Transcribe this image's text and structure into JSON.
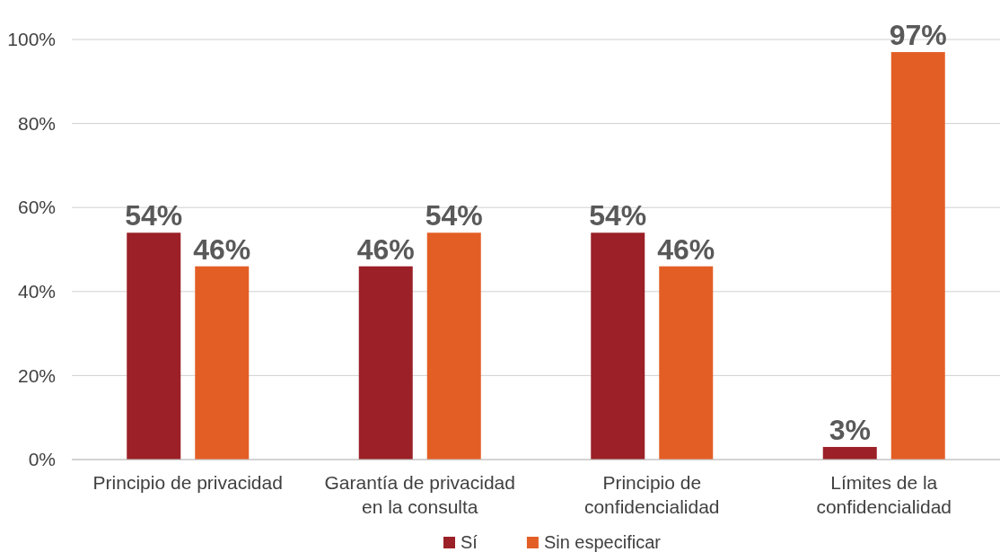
{
  "chart_data": {
    "type": "bar",
    "categories": [
      "Principio de privacidad",
      "Garantía de privacidad en la consulta",
      "Principio de confidencialidad",
      "Límites de la confidencialidad"
    ],
    "series": [
      {
        "name": "Sí",
        "color": "#9b2027",
        "values": [
          54,
          46,
          54,
          3
        ],
        "value_labels": [
          "54%",
          "46%",
          "54%",
          "3%"
        ]
      },
      {
        "name": "Sin especificar",
        "color": "#e35e25",
        "values": [
          46,
          54,
          46,
          97
        ],
        "value_labels": [
          "46%",
          "54%",
          "46%",
          "97%"
        ]
      }
    ],
    "ylim": [
      0,
      100
    ],
    "yticks": [
      {
        "value": 0,
        "label": "0%"
      },
      {
        "value": 20,
        "label": "20%"
      },
      {
        "value": 40,
        "label": "40%"
      },
      {
        "value": 60,
        "label": "60%"
      },
      {
        "value": 80,
        "label": "80%"
      },
      {
        "value": 100,
        "label": "100%"
      }
    ],
    "grid": "y",
    "legend": "bottom"
  }
}
